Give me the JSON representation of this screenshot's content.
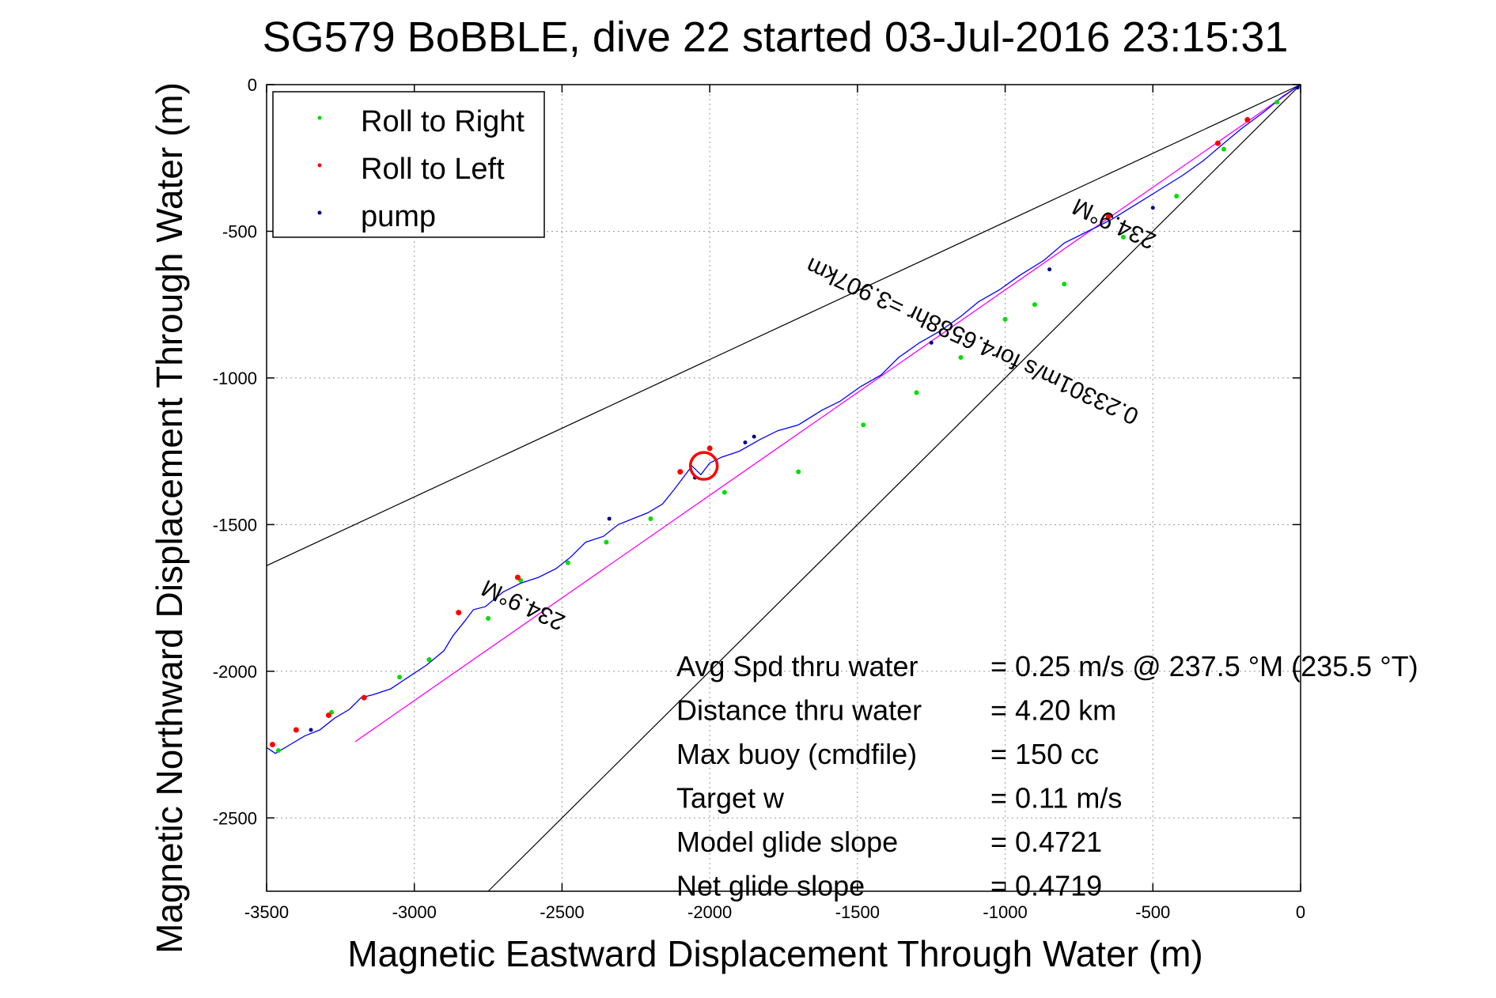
{
  "chart_data": {
    "type": "line",
    "title": "SG579 BoBBLE, dive 22 started 03-Jul-2016 23:15:31",
    "xlabel": "Magnetic Eastward Displacement Through Water (m)",
    "ylabel": "Magnetic Northward Displacement Through Water (m)",
    "xlim": [
      -3500,
      0
    ],
    "ylim": [
      -2750,
      0
    ],
    "xticks": [
      -3500,
      -3000,
      -2500,
      -2000,
      -1500,
      -1000,
      -500,
      0
    ],
    "yticks": [
      0,
      -500,
      -1000,
      -1500,
      -2000,
      -2500
    ],
    "grid": true,
    "legend_position": "top-left",
    "legend": [
      {
        "label": "Roll to Right",
        "color": "#00dd00"
      },
      {
        "label": "Roll to Left",
        "color": "#ff0000"
      },
      {
        "label": "pump",
        "color": "#000088"
      }
    ],
    "track_color": "#0000ff",
    "fit_line_color": "#ff00ff",
    "track": {
      "x": [
        0,
        -60,
        -120,
        -200,
        -260,
        -330,
        -400,
        -480,
        -560,
        -640,
        -720,
        -800,
        -870,
        -950,
        -1020,
        -1090,
        -1150,
        -1220,
        -1290,
        -1360,
        -1420,
        -1490,
        -1560,
        -1620,
        -1700,
        -1770,
        -1830,
        -1900,
        -1960,
        -2000,
        -2030,
        -2060,
        -2090,
        -2120,
        -2160,
        -2210,
        -2260,
        -2310,
        -2360,
        -2420,
        -2470,
        -2520,
        -2580,
        -2640,
        -2700,
        -2760,
        -2800,
        -2830,
        -2870,
        -2900,
        -2960,
        -3020,
        -3080,
        -3140,
        -3180,
        -3220,
        -3270,
        -3320,
        -3370,
        -3420,
        -3470,
        -3500
      ],
      "y": [
        0,
        -40,
        -90,
        -150,
        -200,
        -260,
        -310,
        -360,
        -410,
        -460,
        -500,
        -540,
        -600,
        -650,
        -700,
        -740,
        -790,
        -840,
        -880,
        -930,
        -990,
        -1030,
        -1080,
        -1110,
        -1160,
        -1180,
        -1210,
        -1250,
        -1270,
        -1290,
        -1330,
        -1300,
        -1340,
        -1380,
        -1430,
        -1460,
        -1480,
        -1500,
        -1540,
        -1560,
        -1610,
        -1650,
        -1680,
        -1700,
        -1730,
        -1780,
        -1790,
        -1830,
        -1880,
        -1930,
        -1980,
        -2020,
        -2060,
        -2080,
        -2090,
        -2130,
        -2160,
        -2200,
        -2220,
        -2250,
        -2280,
        -2260
      ]
    },
    "fit_line": {
      "x": [
        0,
        -3200
      ],
      "y": [
        0,
        -2240
      ]
    },
    "reference_lines": [
      {
        "x": [
          0,
          -3500
        ],
        "y": [
          0,
          -1640
        ]
      },
      {
        "x": [
          0,
          -2750
        ],
        "y": [
          0,
          -2750
        ]
      }
    ],
    "roll_right": {
      "x": [
        -80,
        -260,
        -420,
        -600,
        -800,
        -900,
        -1000,
        -1150,
        -1300,
        -1480,
        -1700,
        -1950,
        -2200,
        -2350,
        -2480,
        -2640,
        -2750,
        -2950,
        -3050,
        -3280,
        -3460
      ],
      "y": [
        -60,
        -220,
        -380,
        -520,
        -680,
        -750,
        -800,
        -930,
        -1050,
        -1160,
        -1320,
        -1390,
        -1480,
        -1560,
        -1630,
        -1690,
        -1820,
        -1960,
        -2020,
        -2140,
        -2270
      ]
    },
    "roll_left": {
      "x": [
        -180,
        -280,
        -650,
        -2000,
        -2100,
        -2650,
        -2850,
        -3170,
        -3290,
        -3400,
        -3480
      ],
      "y": [
        -120,
        -200,
        -450,
        -1240,
        -1320,
        -1680,
        -1800,
        -2090,
        -2150,
        -2200,
        -2250
      ]
    },
    "pump": {
      "x": [
        -10,
        -500,
        -850,
        -1250,
        -1850,
        -1880,
        -2050,
        -2340,
        -3350
      ],
      "y": [
        -10,
        -420,
        -630,
        -880,
        -1200,
        -1220,
        -1340,
        -1480,
        -2200
      ]
    },
    "annotations": [
      {
        "text": "234.9°M",
        "x": -620,
        "y": -450,
        "rotate": 205
      },
      {
        "text": "0.23301m/s for4.6588hr =3.907km",
        "x": -1100,
        "y": -850,
        "rotate": 205
      },
      {
        "text": "234.9°M",
        "x": -2620,
        "y": -1750,
        "rotate": 205
      }
    ],
    "info": [
      {
        "label": "Avg Spd thru water",
        "value": "=  0.25 m/s @ 237.5 °M (235.5 °T)"
      },
      {
        "label": "Distance thru water",
        "value": "=  4.20 km"
      },
      {
        "label": "Max buoy (cmdfile)",
        "value": "= 150 cc"
      },
      {
        "label": "Target w",
        "value": "= 0.11 m/s"
      },
      {
        "label": "Model glide slope",
        "value": "= 0.4721"
      },
      {
        "label": "Net glide slope",
        "value": "= 0.4719"
      }
    ]
  }
}
